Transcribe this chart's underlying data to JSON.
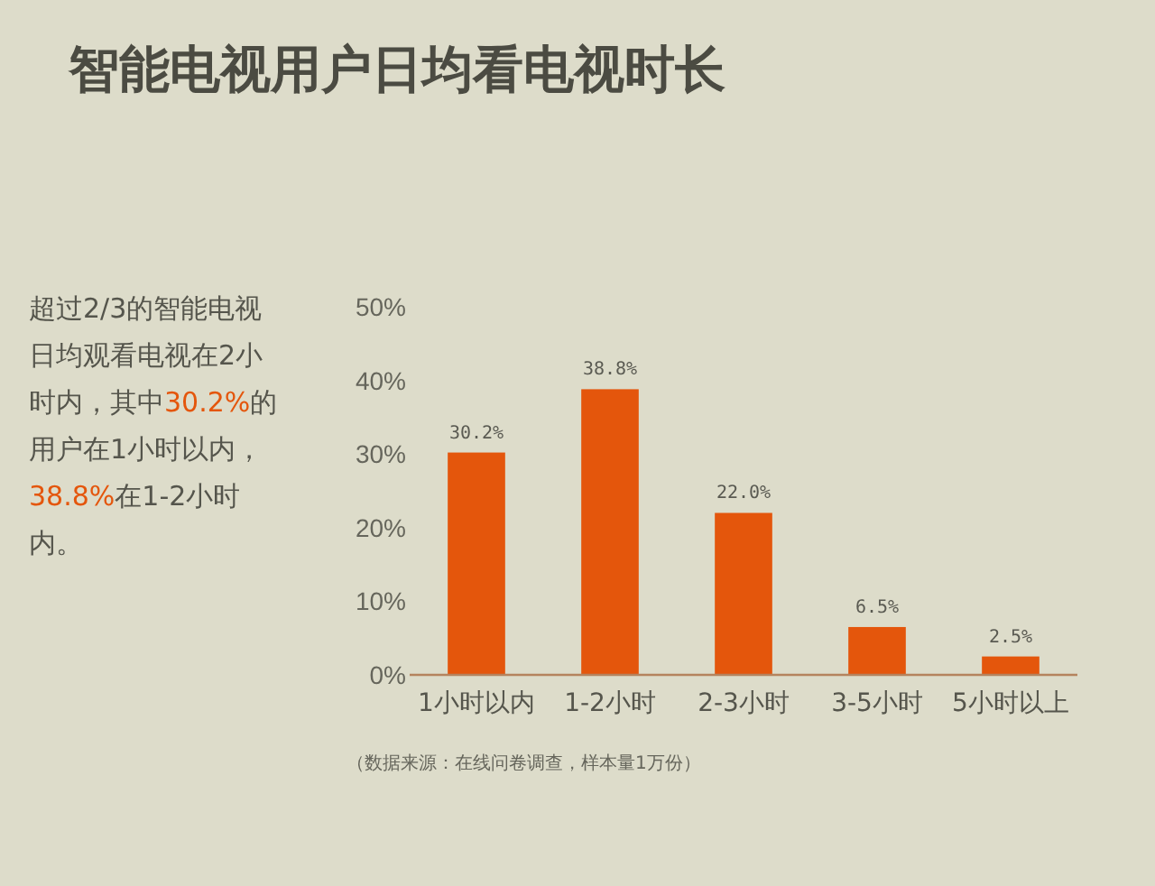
{
  "chart_data": {
    "type": "bar",
    "title": "智能电视用户日均看电视时长",
    "categories": [
      "1小时以内",
      "1-2小时",
      "2-3小时",
      "3-5小时",
      "5小时以上"
    ],
    "values": [
      30.2,
      38.8,
      22.0,
      6.5,
      2.5
    ],
    "value_labels": [
      "30.2%",
      "38.8%",
      "22.0%",
      "6.5%",
      "2.5%"
    ],
    "color": "#e4560c",
    "ylim": [
      0,
      50
    ],
    "yticks": [
      {
        "value": 0,
        "label": "0%"
      },
      {
        "value": 10,
        "label": "10%"
      },
      {
        "value": 20,
        "label": "20%"
      },
      {
        "value": 30,
        "label": "30%"
      },
      {
        "value": 40,
        "label": "40%"
      },
      {
        "value": 50,
        "label": "50%"
      }
    ],
    "annotations": [
      "超过2/3的智能电视日均观看电视在2小时内，其中30.2%的用户在1小时以内，38.8%在1-2小时内。",
      "（数据来源：在线问卷调查，样本量1万份）"
    ]
  }
}
